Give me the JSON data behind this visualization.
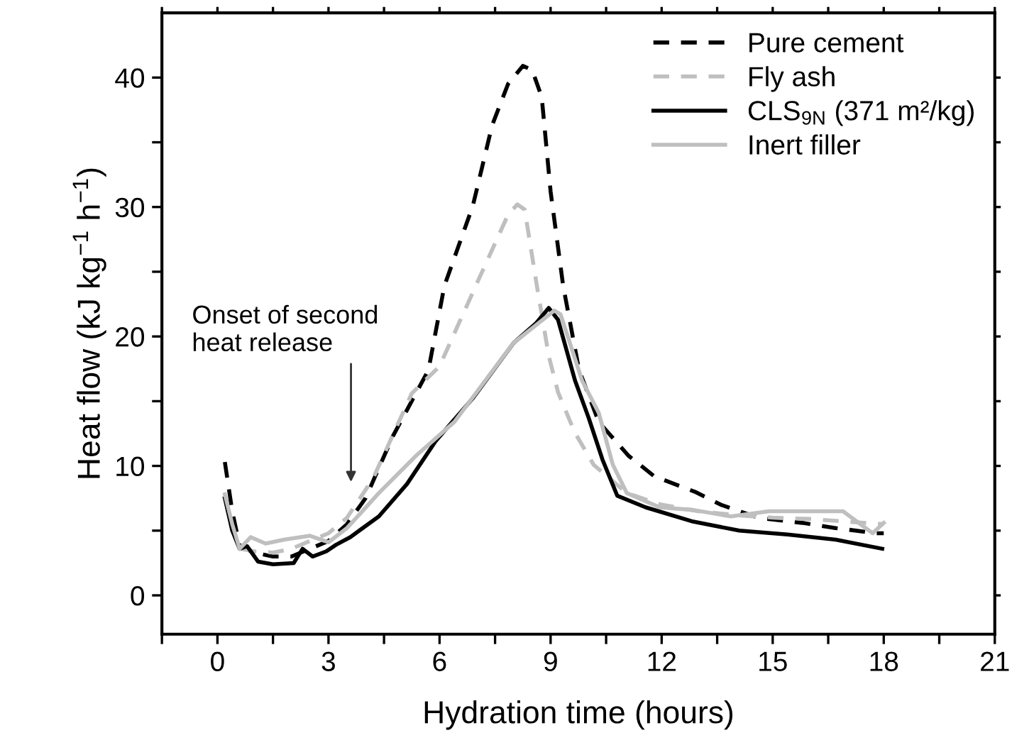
{
  "chart_data": {
    "type": "line",
    "xlabel": "Hydration time (hours)",
    "ylabel": "Heat flow (kJ kg$^{−1}$ h$^{−1}$)",
    "xlim": [
      -1.5,
      21
    ],
    "ylim": [
      -3,
      45
    ],
    "xticks": [
      {
        "value": -1.5,
        "label": null
      },
      0,
      {
        "value": 1.5,
        "label": null
      },
      3,
      {
        "value": 4.5,
        "label": null
      },
      6,
      {
        "value": 7.5,
        "label": null
      },
      9,
      {
        "value": 10.5,
        "label": null
      },
      12,
      {
        "value": 13.5,
        "label": null
      },
      15,
      {
        "value": 16.5,
        "label": null
      },
      18,
      {
        "value": 19.5,
        "label": null
      },
      21
    ],
    "yticks": [
      0,
      {
        "value": 5,
        "label": null
      },
      10,
      {
        "value": 15,
        "label": null
      },
      20,
      {
        "value": 25,
        "label": null
      },
      30,
      {
        "value": 35,
        "label": null
      },
      40
    ],
    "legend": "top right",
    "grid": false,
    "marker": "none",
    "annotations": [
      "Onset of second\nheat release"
    ],
    "series": [
      {
        "name": "Pure cement",
        "color": "#000000",
        "line_style": "dashed",
        "x": [
          0.2,
          0.4,
          0.6,
          1.0,
          1.5,
          2.0,
          2.5,
          3.0,
          3.5,
          4.0,
          4.74,
          5.7,
          6.13,
          6.9,
          7.42,
          7.85,
          8.25,
          8.5,
          8.76,
          9.0,
          9.34,
          9.77,
          10.3,
          11.1,
          11.8,
          12.9,
          13.6,
          14.6,
          15.8,
          16.7,
          17.8,
          18.0
        ],
        "values": [
          10.3,
          6.5,
          3.8,
          3.3,
          3.0,
          3.0,
          3.6,
          4.2,
          5.5,
          7.5,
          12.3,
          17.4,
          23.9,
          30.1,
          36.3,
          39.5,
          40.9,
          40.6,
          38.5,
          31.2,
          23.9,
          17.4,
          13.4,
          10.8,
          9.2,
          8.0,
          7.0,
          6.0,
          5.6,
          5.2,
          4.8,
          4.8
        ]
      },
      {
        "name": "Fly ash",
        "color": "#bfbfbf",
        "line_style": "dashed",
        "x": [
          0.2,
          0.4,
          0.6,
          1.0,
          1.5,
          2.0,
          2.5,
          3.0,
          3.5,
          4.2,
          5.25,
          6.0,
          7.04,
          7.85,
          8.1,
          8.3,
          8.63,
          8.95,
          9.2,
          9.65,
          10.16,
          11.06,
          12.0,
          13.0,
          14.0,
          15.0,
          16.0,
          17.0,
          18.0
        ],
        "values": [
          7.6,
          5.0,
          3.6,
          3.4,
          3.3,
          3.6,
          4.2,
          4.8,
          6.0,
          9.0,
          15.6,
          17.7,
          24.3,
          29.4,
          30.2,
          29.8,
          23.9,
          18.5,
          15.7,
          12.6,
          10.1,
          7.9,
          7.0,
          6.5,
          6.2,
          6.0,
          5.9,
          5.7,
          5.5
        ]
      },
      {
        "name": "CLS$_{9N}$ (371 m²/kg)",
        "color": "#000000",
        "line_style": "solid",
        "x": [
          0.2,
          0.4,
          0.6,
          0.8,
          1.1,
          1.5,
          2.06,
          2.3,
          2.57,
          2.94,
          3.2,
          3.59,
          4.36,
          5.12,
          5.89,
          6.89,
          8.0,
          8.6,
          8.95,
          9.2,
          9.66,
          10.03,
          10.4,
          10.8,
          11.57,
          12.85,
          14.1,
          15.4,
          16.7,
          17.96
        ],
        "values": [
          7.5,
          5.0,
          3.6,
          3.8,
          2.6,
          2.4,
          2.5,
          3.6,
          3.0,
          3.4,
          3.9,
          4.5,
          6.1,
          8.6,
          11.9,
          15.2,
          19.5,
          21.0,
          22.2,
          21.3,
          16.6,
          13.7,
          10.5,
          7.7,
          6.8,
          5.7,
          5.0,
          4.7,
          4.3,
          3.6
        ]
      },
      {
        "name": "Inert filler",
        "color": "#bfbfbf",
        "line_style": "solid",
        "x": [
          0.2,
          0.4,
          0.6,
          0.9,
          1.3,
          1.8,
          2.5,
          3.0,
          3.5,
          4.36,
          5.37,
          6.4,
          8.0,
          9.1,
          9.27,
          9.85,
          10.3,
          10.68,
          11.06,
          11.95,
          12.85,
          13.87,
          14.9,
          16.9,
          17.7,
          18.0
        ],
        "values": [
          7.8,
          5.5,
          3.6,
          4.5,
          4.0,
          4.3,
          4.6,
          4.1,
          5.2,
          7.9,
          10.8,
          13.4,
          19.5,
          22.0,
          21.7,
          16.6,
          14.1,
          10.1,
          7.9,
          6.8,
          6.6,
          6.1,
          6.5,
          6.5,
          4.8,
          5.6
        ]
      }
    ]
  }
}
